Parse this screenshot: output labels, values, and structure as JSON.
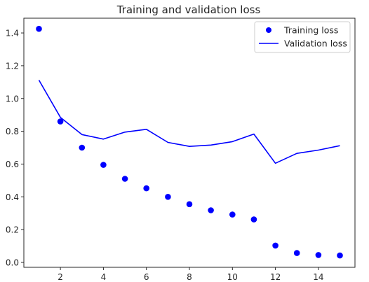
{
  "chart_data": {
    "type": "line",
    "title": "Training and validation loss",
    "xlabel": "",
    "ylabel": "",
    "xlim": [
      0.3,
      15.7
    ],
    "ylim": [
      -0.03,
      1.49
    ],
    "xticks": [
      2,
      4,
      6,
      8,
      10,
      12,
      14
    ],
    "yticks": [
      0.0,
      0.2,
      0.4,
      0.6,
      0.8,
      1.0,
      1.2,
      1.4
    ],
    "grid": false,
    "legend_position": "top-right",
    "series": [
      {
        "name": "Training loss",
        "style": "points",
        "color": "#0000ff",
        "x": [
          1,
          2,
          3,
          4,
          5,
          6,
          7,
          8,
          9,
          10,
          11,
          12,
          13,
          14,
          15
        ],
        "y": [
          1.425,
          0.86,
          0.7,
          0.595,
          0.51,
          0.452,
          0.4,
          0.355,
          0.318,
          0.292,
          0.262,
          0.103,
          0.057,
          0.045,
          0.042
        ]
      },
      {
        "name": "Validation loss",
        "style": "line",
        "color": "#0000ff",
        "x": [
          1,
          2,
          3,
          4,
          5,
          6,
          7,
          8,
          9,
          10,
          11,
          12,
          13,
          14,
          15
        ],
        "y": [
          1.112,
          0.885,
          0.78,
          0.752,
          0.795,
          0.812,
          0.732,
          0.708,
          0.716,
          0.737,
          0.783,
          0.605,
          0.665,
          0.685,
          0.712
        ]
      }
    ]
  }
}
